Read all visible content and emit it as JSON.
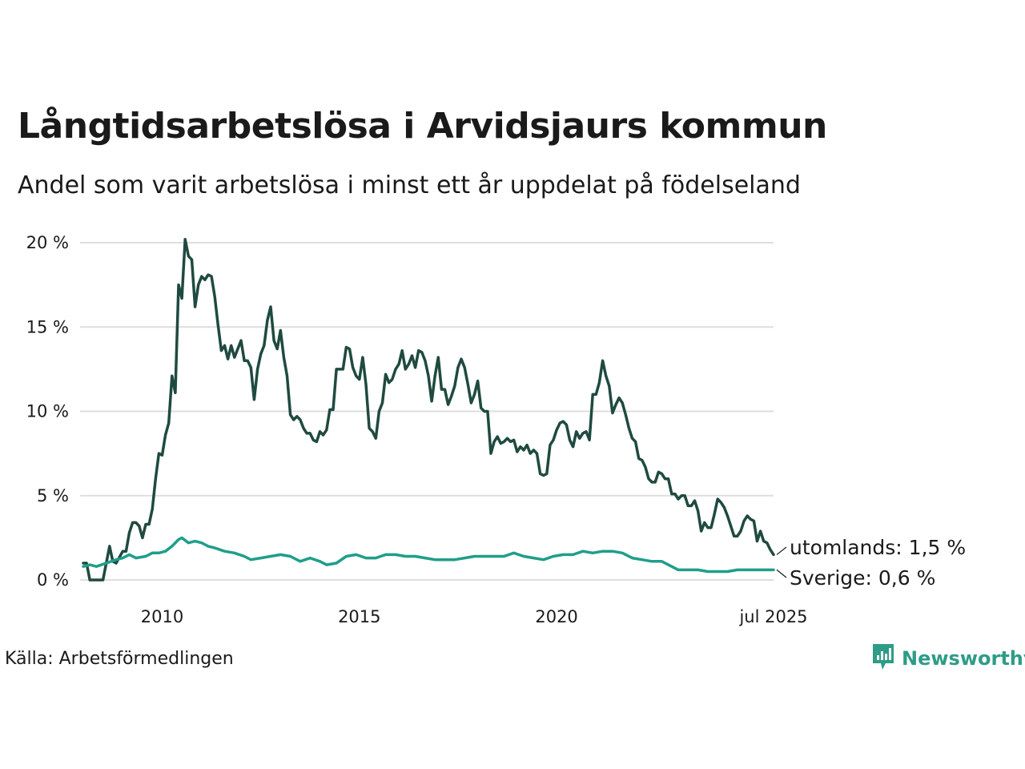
{
  "header": {
    "title": "Långtidsarbetslösa i Arvidsjaurs kommun",
    "subtitle": "Andel som varit arbetslösa i minst ett år uppdelat på födelseland"
  },
  "footer": {
    "source": "Källa: Arbetsförmedlingen",
    "brand": "Newsworthy",
    "brand_icon": "newsworthy-logo-icon"
  },
  "colors": {
    "utomlands": "#1f4a40",
    "sverige": "#1f9e8a",
    "grid": "#dedede",
    "brand": "#2e9c87"
  },
  "chart_data": {
    "type": "line",
    "x_unit": "month",
    "xlim": [
      "2008-01",
      "2025-07"
    ],
    "ylim": [
      0,
      20
    ],
    "y_ticks": [
      0,
      5,
      10,
      15,
      20
    ],
    "y_tick_labels": [
      "0 %",
      "5 %",
      "10 %",
      "15 %",
      "20 %"
    ],
    "x_ticks": [
      "2010-01",
      "2015-01",
      "2020-01",
      "2025-07"
    ],
    "x_tick_labels": [
      "2010",
      "2015",
      "2020",
      "jul 2025"
    ],
    "grid": "horizontal",
    "series": [
      {
        "name": "utomlands",
        "end_label": "utomlands: 1,5 %",
        "color": "#1f4a40",
        "points": [
          [
            "2008-01",
            1.0
          ],
          [
            "2008-02",
            1.0
          ],
          [
            "2008-03",
            0
          ],
          [
            "2008-06",
            0
          ],
          [
            "2008-07",
            0
          ],
          [
            "2008-09",
            2.0
          ],
          [
            "2008-10",
            1.1
          ],
          [
            "2008-11",
            1.0
          ],
          [
            "2009-01",
            1.7
          ],
          [
            "2009-02",
            1.7
          ],
          [
            "2009-03",
            2.8
          ],
          [
            "2009-04",
            3.4
          ],
          [
            "2009-05",
            3.4
          ],
          [
            "2009-06",
            3.2
          ],
          [
            "2009-07",
            2.5
          ],
          [
            "2009-08",
            3.3
          ],
          [
            "2009-09",
            3.3
          ],
          [
            "2009-10",
            4.2
          ],
          [
            "2009-11",
            6.0
          ],
          [
            "2009-12",
            7.5
          ],
          [
            "2010-01",
            7.4
          ],
          [
            "2010-02",
            8.6
          ],
          [
            "2010-03",
            9.3
          ],
          [
            "2010-04",
            12.1
          ],
          [
            "2010-05",
            11.1
          ],
          [
            "2010-06",
            17.5
          ],
          [
            "2010-07",
            16.7
          ],
          [
            "2010-08",
            20.2
          ],
          [
            "2010-09",
            19.2
          ],
          [
            "2010-10",
            19.0
          ],
          [
            "2010-11",
            16.2
          ],
          [
            "2010-12",
            17.5
          ],
          [
            "2011-01",
            18.0
          ],
          [
            "2011-02",
            17.8
          ],
          [
            "2011-03",
            18.1
          ],
          [
            "2011-04",
            18.0
          ],
          [
            "2011-05",
            16.8
          ],
          [
            "2011-06",
            15.1
          ],
          [
            "2011-07",
            13.6
          ],
          [
            "2011-08",
            13.9
          ],
          [
            "2011-09",
            13.1
          ],
          [
            "2011-10",
            13.9
          ],
          [
            "2011-11",
            13.2
          ],
          [
            "2011-12",
            13.7
          ],
          [
            "2012-01",
            14.2
          ],
          [
            "2012-02",
            13.0
          ],
          [
            "2012-03",
            13.0
          ],
          [
            "2012-04",
            12.6
          ],
          [
            "2012-05",
            10.7
          ],
          [
            "2012-06",
            12.5
          ],
          [
            "2012-07",
            13.4
          ],
          [
            "2012-08",
            13.9
          ],
          [
            "2012-09",
            15.4
          ],
          [
            "2012-10",
            16.2
          ],
          [
            "2012-11",
            14.2
          ],
          [
            "2012-12",
            13.7
          ],
          [
            "2013-01",
            14.8
          ],
          [
            "2013-02",
            13.2
          ],
          [
            "2013-03",
            12.1
          ],
          [
            "2013-04",
            9.8
          ],
          [
            "2013-05",
            9.5
          ],
          [
            "2013-06",
            9.7
          ],
          [
            "2013-07",
            9.5
          ],
          [
            "2013-08",
            9.0
          ],
          [
            "2013-09",
            8.7
          ],
          [
            "2013-10",
            8.7
          ],
          [
            "2013-11",
            8.3
          ],
          [
            "2013-12",
            8.2
          ],
          [
            "2014-01",
            8.8
          ],
          [
            "2014-02",
            8.6
          ],
          [
            "2014-03",
            8.9
          ],
          [
            "2014-04",
            10.1
          ],
          [
            "2014-05",
            10.1
          ],
          [
            "2014-06",
            12.5
          ],
          [
            "2014-07",
            12.5
          ],
          [
            "2014-08",
            12.5
          ],
          [
            "2014-09",
            13.8
          ],
          [
            "2014-10",
            13.7
          ],
          [
            "2014-11",
            12.6
          ],
          [
            "2014-12",
            12.1
          ],
          [
            "2015-01",
            11.9
          ],
          [
            "2015-02",
            13.2
          ],
          [
            "2015-03",
            11.6
          ],
          [
            "2015-04",
            9.0
          ],
          [
            "2015-05",
            8.8
          ],
          [
            "2015-06",
            8.4
          ],
          [
            "2015-07",
            10.0
          ],
          [
            "2015-08",
            10.5
          ],
          [
            "2015-09",
            12.2
          ],
          [
            "2015-10",
            11.7
          ],
          [
            "2015-11",
            11.9
          ],
          [
            "2015-12",
            12.5
          ],
          [
            "2016-01",
            12.8
          ],
          [
            "2016-02",
            13.6
          ],
          [
            "2016-03",
            12.5
          ],
          [
            "2016-04",
            12.8
          ],
          [
            "2016-05",
            13.3
          ],
          [
            "2016-06",
            12.6
          ],
          [
            "2016-07",
            13.6
          ],
          [
            "2016-08",
            13.5
          ],
          [
            "2016-09",
            13.0
          ],
          [
            "2016-10",
            12.1
          ],
          [
            "2016-11",
            10.6
          ],
          [
            "2016-12",
            12.1
          ],
          [
            "2017-01",
            13.2
          ],
          [
            "2017-02",
            11.3
          ],
          [
            "2017-03",
            11.3
          ],
          [
            "2017-04",
            10.4
          ],
          [
            "2017-05",
            10.9
          ],
          [
            "2017-06",
            11.5
          ],
          [
            "2017-07",
            12.6
          ],
          [
            "2017-08",
            13.1
          ],
          [
            "2017-09",
            12.6
          ],
          [
            "2017-10",
            11.6
          ],
          [
            "2017-11",
            10.5
          ],
          [
            "2017-12",
            11.0
          ],
          [
            "2018-01",
            11.8
          ],
          [
            "2018-02",
            10.2
          ],
          [
            "2018-03",
            10.0
          ],
          [
            "2018-04",
            10.0
          ],
          [
            "2018-05",
            7.5
          ],
          [
            "2018-06",
            8.2
          ],
          [
            "2018-07",
            8.5
          ],
          [
            "2018-08",
            8.1
          ],
          [
            "2018-09",
            8.2
          ],
          [
            "2018-10",
            8.4
          ],
          [
            "2018-11",
            8.2
          ],
          [
            "2018-12",
            8.3
          ],
          [
            "2019-01",
            7.6
          ],
          [
            "2019-02",
            7.9
          ],
          [
            "2019-03",
            7.7
          ],
          [
            "2019-04",
            8.0
          ],
          [
            "2019-05",
            7.5
          ],
          [
            "2019-06",
            7.7
          ],
          [
            "2019-07",
            7.5
          ],
          [
            "2019-08",
            6.3
          ],
          [
            "2019-09",
            6.2
          ],
          [
            "2019-10",
            6.3
          ],
          [
            "2019-11",
            8.0
          ],
          [
            "2019-12",
            8.3
          ],
          [
            "2020-01",
            8.9
          ],
          [
            "2020-02",
            9.3
          ],
          [
            "2020-03",
            9.4
          ],
          [
            "2020-04",
            9.2
          ],
          [
            "2020-05",
            8.3
          ],
          [
            "2020-06",
            7.9
          ],
          [
            "2020-07",
            8.8
          ],
          [
            "2020-08",
            8.4
          ],
          [
            "2020-09",
            8.7
          ],
          [
            "2020-10",
            8.8
          ],
          [
            "2020-11",
            8.3
          ],
          [
            "2020-12",
            11.0
          ],
          [
            "2021-01",
            11.0
          ],
          [
            "2021-02",
            11.7
          ],
          [
            "2021-03",
            13.0
          ],
          [
            "2021-04",
            12.1
          ],
          [
            "2021-05",
            11.5
          ],
          [
            "2021-06",
            9.9
          ],
          [
            "2021-07",
            10.4
          ],
          [
            "2021-08",
            10.8
          ],
          [
            "2021-09",
            10.5
          ],
          [
            "2021-10",
            9.8
          ],
          [
            "2021-11",
            9.0
          ],
          [
            "2021-12",
            8.4
          ],
          [
            "2022-01",
            8.2
          ],
          [
            "2022-02",
            7.2
          ],
          [
            "2022-03",
            7.1
          ],
          [
            "2022-04",
            6.7
          ],
          [
            "2022-05",
            6.0
          ],
          [
            "2022-06",
            5.8
          ],
          [
            "2022-07",
            5.8
          ],
          [
            "2022-08",
            6.4
          ],
          [
            "2022-09",
            6.3
          ],
          [
            "2022-10",
            6.0
          ],
          [
            "2022-11",
            6.0
          ],
          [
            "2022-12",
            5.1
          ],
          [
            "2023-01",
            5.1
          ],
          [
            "2023-02",
            4.8
          ],
          [
            "2023-03",
            5.0
          ],
          [
            "2023-04",
            5.0
          ],
          [
            "2023-05",
            4.4
          ],
          [
            "2023-06",
            4.4
          ],
          [
            "2023-07",
            4.7
          ],
          [
            "2023-08",
            4.1
          ],
          [
            "2023-09",
            2.9
          ],
          [
            "2023-10",
            3.4
          ],
          [
            "2023-11",
            3.1
          ],
          [
            "2023-12",
            3.1
          ],
          [
            "2024-01",
            3.9
          ],
          [
            "2024-02",
            4.8
          ],
          [
            "2024-03",
            4.6
          ],
          [
            "2024-04",
            4.3
          ],
          [
            "2024-05",
            3.8
          ],
          [
            "2024-06",
            3.2
          ],
          [
            "2024-07",
            2.6
          ],
          [
            "2024-08",
            2.6
          ],
          [
            "2024-09",
            2.9
          ],
          [
            "2024-10",
            3.5
          ],
          [
            "2024-11",
            3.8
          ],
          [
            "2024-12",
            3.6
          ],
          [
            "2025-01",
            3.5
          ],
          [
            "2025-02",
            2.3
          ],
          [
            "2025-03",
            2.9
          ],
          [
            "2025-04",
            2.3
          ],
          [
            "2025-05",
            2.2
          ],
          [
            "2025-06",
            1.8
          ],
          [
            "2025-07",
            1.5
          ]
        ]
      },
      {
        "name": "Sverige",
        "end_label": "Sverige: 0,6 %",
        "color": "#1f9e8a",
        "points": [
          [
            "2008-01",
            0.8
          ],
          [
            "2008-03",
            0.9
          ],
          [
            "2008-05",
            0.8
          ],
          [
            "2008-08",
            1.0
          ],
          [
            "2008-11",
            1.2
          ],
          [
            "2009-01",
            1.3
          ],
          [
            "2009-03",
            1.5
          ],
          [
            "2009-05",
            1.3
          ],
          [
            "2009-08",
            1.4
          ],
          [
            "2009-10",
            1.6
          ],
          [
            "2009-12",
            1.6
          ],
          [
            "2010-02",
            1.7
          ],
          [
            "2010-04",
            2.0
          ],
          [
            "2010-06",
            2.4
          ],
          [
            "2010-07",
            2.5
          ],
          [
            "2010-09",
            2.2
          ],
          [
            "2010-11",
            2.3
          ],
          [
            "2011-01",
            2.2
          ],
          [
            "2011-03",
            2.0
          ],
          [
            "2011-05",
            1.9
          ],
          [
            "2011-08",
            1.7
          ],
          [
            "2011-11",
            1.6
          ],
          [
            "2012-02",
            1.4
          ],
          [
            "2012-04",
            1.2
          ],
          [
            "2012-07",
            1.3
          ],
          [
            "2012-10",
            1.4
          ],
          [
            "2013-01",
            1.5
          ],
          [
            "2013-04",
            1.4
          ],
          [
            "2013-07",
            1.1
          ],
          [
            "2013-10",
            1.3
          ],
          [
            "2014-01",
            1.1
          ],
          [
            "2014-03",
            0.9
          ],
          [
            "2014-06",
            1.0
          ],
          [
            "2014-09",
            1.4
          ],
          [
            "2014-12",
            1.5
          ],
          [
            "2015-03",
            1.3
          ],
          [
            "2015-06",
            1.3
          ],
          [
            "2015-09",
            1.5
          ],
          [
            "2015-12",
            1.5
          ],
          [
            "2016-03",
            1.4
          ],
          [
            "2016-06",
            1.4
          ],
          [
            "2016-09",
            1.3
          ],
          [
            "2016-12",
            1.2
          ],
          [
            "2017-03",
            1.2
          ],
          [
            "2017-06",
            1.2
          ],
          [
            "2017-09",
            1.3
          ],
          [
            "2017-12",
            1.4
          ],
          [
            "2018-03",
            1.4
          ],
          [
            "2018-06",
            1.4
          ],
          [
            "2018-09",
            1.4
          ],
          [
            "2018-12",
            1.6
          ],
          [
            "2019-03",
            1.4
          ],
          [
            "2019-06",
            1.3
          ],
          [
            "2019-09",
            1.2
          ],
          [
            "2019-12",
            1.4
          ],
          [
            "2020-03",
            1.5
          ],
          [
            "2020-06",
            1.5
          ],
          [
            "2020-09",
            1.7
          ],
          [
            "2020-12",
            1.6
          ],
          [
            "2021-03",
            1.7
          ],
          [
            "2021-06",
            1.7
          ],
          [
            "2021-09",
            1.6
          ],
          [
            "2021-12",
            1.3
          ],
          [
            "2022-03",
            1.2
          ],
          [
            "2022-06",
            1.1
          ],
          [
            "2022-09",
            1.1
          ],
          [
            "2022-12",
            0.8
          ],
          [
            "2023-02",
            0.6
          ],
          [
            "2023-05",
            0.6
          ],
          [
            "2023-08",
            0.6
          ],
          [
            "2023-11",
            0.5
          ],
          [
            "2024-02",
            0.5
          ],
          [
            "2024-05",
            0.5
          ],
          [
            "2024-08",
            0.6
          ],
          [
            "2024-11",
            0.6
          ],
          [
            "2025-02",
            0.6
          ],
          [
            "2025-05",
            0.6
          ],
          [
            "2025-07",
            0.6
          ]
        ]
      }
    ]
  }
}
